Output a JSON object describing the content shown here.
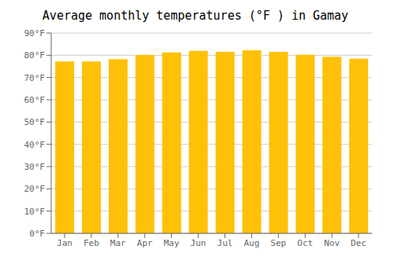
{
  "chart_data": {
    "type": "bar",
    "title": "Average monthly temperatures (°F ) in Gamay",
    "categories": [
      "Jan",
      "Feb",
      "Mar",
      "Apr",
      "May",
      "Jun",
      "Jul",
      "Aug",
      "Sep",
      "Oct",
      "Nov",
      "Dec"
    ],
    "values": [
      77.2,
      77.2,
      78.3,
      80.1,
      81.3,
      82.0,
      81.5,
      82.2,
      81.5,
      80.2,
      79.3,
      78.4
    ],
    "color": "#FFC107",
    "ylim": [
      0,
      90
    ],
    "yticks": [
      {
        "value": 0,
        "label": "0°F"
      },
      {
        "value": 10,
        "label": "10°F"
      },
      {
        "value": 20,
        "label": "20°F"
      },
      {
        "value": 30,
        "label": "30°F"
      },
      {
        "value": 40,
        "label": "40°F"
      },
      {
        "value": 50,
        "label": "50°F"
      },
      {
        "value": 60,
        "label": "60°F"
      },
      {
        "value": 70,
        "label": "70°F"
      },
      {
        "value": 80,
        "label": "80°F"
      },
      {
        "value": 90,
        "label": "90°F"
      }
    ],
    "grid": true
  }
}
